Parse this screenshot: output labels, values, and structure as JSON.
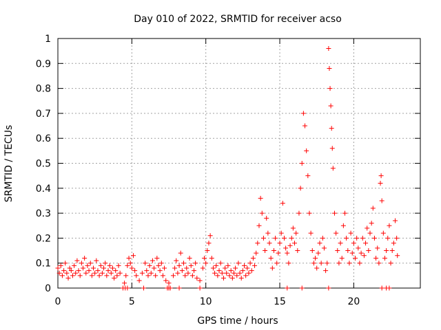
{
  "chart_data": {
    "type": "scatter",
    "title": "Day 010 of 2022, SRMTID for receiver acso",
    "xlabel": "GPS time / hours",
    "ylabel": "SRMTID / TECUs",
    "xlim": [
      0,
      24.5
    ],
    "ylim": [
      0,
      1
    ],
    "xticks": [
      "0",
      "5",
      "10",
      "15",
      "20"
    ],
    "yticks": [
      "0",
      "0.1",
      "0.2",
      "0.3",
      "0.4",
      "0.5",
      "0.6",
      "0.7",
      "0.8",
      "0.9",
      "1"
    ],
    "grid": true,
    "marker": "+",
    "color": "#ff0000",
    "series": [
      {
        "name": "SRMTID",
        "points": [
          [
            0.0,
            0.08
          ],
          [
            0.1,
            0.06
          ],
          [
            0.2,
            0.09
          ],
          [
            0.3,
            0.05
          ],
          [
            0.4,
            0.07
          ],
          [
            0.5,
            0.1
          ],
          [
            0.6,
            0.06
          ],
          [
            0.7,
            0.04
          ],
          [
            0.8,
            0.08
          ],
          [
            0.9,
            0.07
          ],
          [
            1.0,
            0.05
          ],
          [
            1.1,
            0.09
          ],
          [
            1.2,
            0.06
          ],
          [
            1.3,
            0.11
          ],
          [
            1.4,
            0.07
          ],
          [
            1.5,
            0.05
          ],
          [
            1.6,
            0.1
          ],
          [
            1.7,
            0.08
          ],
          [
            1.8,
            0.12
          ],
          [
            1.9,
            0.06
          ],
          [
            2.0,
            0.09
          ],
          [
            2.1,
            0.07
          ],
          [
            2.2,
            0.1
          ],
          [
            2.3,
            0.05
          ],
          [
            2.4,
            0.08
          ],
          [
            2.5,
            0.06
          ],
          [
            2.6,
            0.11
          ],
          [
            2.7,
            0.07
          ],
          [
            2.8,
            0.05
          ],
          [
            2.9,
            0.09
          ],
          [
            3.0,
            0.06
          ],
          [
            3.1,
            0.08
          ],
          [
            3.2,
            0.1
          ],
          [
            3.3,
            0.05
          ],
          [
            3.4,
            0.07
          ],
          [
            3.5,
            0.09
          ],
          [
            3.6,
            0.06
          ],
          [
            3.7,
            0.08
          ],
          [
            3.8,
            0.04
          ],
          [
            3.9,
            0.07
          ],
          [
            4.0,
            0.05
          ],
          [
            4.1,
            0.09
          ],
          [
            4.2,
            0.06
          ],
          [
            4.5,
            0.02
          ],
          [
            4.6,
            0.05
          ],
          [
            4.7,
            0.09
          ],
          [
            4.8,
            0.12
          ],
          [
            4.9,
            0.1
          ],
          [
            5.0,
            0.08
          ],
          [
            5.1,
            0.13
          ],
          [
            5.2,
            0.07
          ],
          [
            5.3,
            0.05
          ],
          [
            5.5,
            0.03
          ],
          [
            5.7,
            0.06
          ],
          [
            5.9,
            0.1
          ],
          [
            6.0,
            0.07
          ],
          [
            6.1,
            0.05
          ],
          [
            6.2,
            0.09
          ],
          [
            6.3,
            0.06
          ],
          [
            6.4,
            0.11
          ],
          [
            6.5,
            0.08
          ],
          [
            6.6,
            0.05
          ],
          [
            6.7,
            0.12
          ],
          [
            6.8,
            0.09
          ],
          [
            6.9,
            0.07
          ],
          [
            7.0,
            0.1
          ],
          [
            7.1,
            0.05
          ],
          [
            7.2,
            0.08
          ],
          [
            7.3,
            0.03
          ],
          [
            7.5,
            0.02
          ],
          [
            7.8,
            0.05
          ],
          [
            7.9,
            0.08
          ],
          [
            8.0,
            0.11
          ],
          [
            8.1,
            0.06
          ],
          [
            8.2,
            0.09
          ],
          [
            8.3,
            0.14
          ],
          [
            8.4,
            0.07
          ],
          [
            8.5,
            0.1
          ],
          [
            8.6,
            0.05
          ],
          [
            8.7,
            0.08
          ],
          [
            8.8,
            0.06
          ],
          [
            8.9,
            0.12
          ],
          [
            9.0,
            0.09
          ],
          [
            9.1,
            0.05
          ],
          [
            9.2,
            0.07
          ],
          [
            9.3,
            0.1
          ],
          [
            9.4,
            0.04
          ],
          [
            9.6,
            0.03
          ],
          [
            9.8,
            0.08
          ],
          [
            9.9,
            0.12
          ],
          [
            10.0,
            0.1
          ],
          [
            10.1,
            0.15
          ],
          [
            10.2,
            0.18
          ],
          [
            10.3,
            0.21
          ],
          [
            10.4,
            0.12
          ],
          [
            10.5,
            0.08
          ],
          [
            10.6,
            0.06
          ],
          [
            10.7,
            0.09
          ],
          [
            10.8,
            0.05
          ],
          [
            10.9,
            0.07
          ],
          [
            11.0,
            0.1
          ],
          [
            11.1,
            0.06
          ],
          [
            11.2,
            0.04
          ],
          [
            11.3,
            0.08
          ],
          [
            11.4,
            0.06
          ],
          [
            11.5,
            0.09
          ],
          [
            11.6,
            0.05
          ],
          [
            11.7,
            0.07
          ],
          [
            11.8,
            0.04
          ],
          [
            11.9,
            0.06
          ],
          [
            12.0,
            0.08
          ],
          [
            12.1,
            0.05
          ],
          [
            12.2,
            0.1
          ],
          [
            12.3,
            0.06
          ],
          [
            12.4,
            0.04
          ],
          [
            12.5,
            0.07
          ],
          [
            12.6,
            0.09
          ],
          [
            12.7,
            0.05
          ],
          [
            12.8,
            0.08
          ],
          [
            12.9,
            0.06
          ],
          [
            13.0,
            0.1
          ],
          [
            13.1,
            0.07
          ],
          [
            13.2,
            0.12
          ],
          [
            13.3,
            0.09
          ],
          [
            13.4,
            0.14
          ],
          [
            13.5,
            0.18
          ],
          [
            13.6,
            0.25
          ],
          [
            13.7,
            0.36
          ],
          [
            13.8,
            0.3
          ],
          [
            13.9,
            0.2
          ],
          [
            14.0,
            0.15
          ],
          [
            14.1,
            0.28
          ],
          [
            14.2,
            0.22
          ],
          [
            14.3,
            0.18
          ],
          [
            14.4,
            0.12
          ],
          [
            14.5,
            0.08
          ],
          [
            14.6,
            0.15
          ],
          [
            14.7,
            0.2
          ],
          [
            14.8,
            0.1
          ],
          [
            14.9,
            0.14
          ],
          [
            15.0,
            0.18
          ],
          [
            15.1,
            0.22
          ],
          [
            15.2,
            0.34
          ],
          [
            15.3,
            0.2
          ],
          [
            15.4,
            0.16
          ],
          [
            15.5,
            0.14
          ],
          [
            15.6,
            0.1
          ],
          [
            15.7,
            0.17
          ],
          [
            15.8,
            0.2
          ],
          [
            15.9,
            0.24
          ],
          [
            16.0,
            0.18
          ],
          [
            16.1,
            0.22
          ],
          [
            16.2,
            0.15
          ],
          [
            16.3,
            0.3
          ],
          [
            16.4,
            0.4
          ],
          [
            16.5,
            0.5
          ],
          [
            16.6,
            0.7
          ],
          [
            16.7,
            0.65
          ],
          [
            16.8,
            0.55
          ],
          [
            16.9,
            0.45
          ],
          [
            17.0,
            0.3
          ],
          [
            17.1,
            0.22
          ],
          [
            17.2,
            0.15
          ],
          [
            17.3,
            0.1
          ],
          [
            17.4,
            0.12
          ],
          [
            17.5,
            0.08
          ],
          [
            17.6,
            0.14
          ],
          [
            17.7,
            0.18
          ],
          [
            17.8,
            0.1
          ],
          [
            17.9,
            0.2
          ],
          [
            18.0,
            0.16
          ],
          [
            18.1,
            0.07
          ],
          [
            18.2,
            0.1
          ],
          [
            18.3,
            0.96
          ],
          [
            18.35,
            0.88
          ],
          [
            18.4,
            0.8
          ],
          [
            18.45,
            0.73
          ],
          [
            18.5,
            0.64
          ],
          [
            18.55,
            0.56
          ],
          [
            18.6,
            0.48
          ],
          [
            18.7,
            0.3
          ],
          [
            18.8,
            0.22
          ],
          [
            18.9,
            0.15
          ],
          [
            19.0,
            0.1
          ],
          [
            19.1,
            0.18
          ],
          [
            19.2,
            0.12
          ],
          [
            19.3,
            0.25
          ],
          [
            19.4,
            0.3
          ],
          [
            19.5,
            0.2
          ],
          [
            19.6,
            0.15
          ],
          [
            19.7,
            0.1
          ],
          [
            19.8,
            0.22
          ],
          [
            19.9,
            0.14
          ],
          [
            20.0,
            0.18
          ],
          [
            20.1,
            0.12
          ],
          [
            20.2,
            0.2
          ],
          [
            20.3,
            0.16
          ],
          [
            20.4,
            0.1
          ],
          [
            20.5,
            0.14
          ],
          [
            20.6,
            0.2
          ],
          [
            20.7,
            0.13
          ],
          [
            20.8,
            0.18
          ],
          [
            20.9,
            0.24
          ],
          [
            21.0,
            0.15
          ],
          [
            21.1,
            0.22
          ],
          [
            21.2,
            0.26
          ],
          [
            21.3,
            0.32
          ],
          [
            21.4,
            0.2
          ],
          [
            21.5,
            0.12
          ],
          [
            21.6,
            0.16
          ],
          [
            21.7,
            0.1
          ],
          [
            21.8,
            0.42
          ],
          [
            21.85,
            0.45
          ],
          [
            21.9,
            0.35
          ],
          [
            22.0,
            0.22
          ],
          [
            22.1,
            0.12
          ],
          [
            22.2,
            0.15
          ],
          [
            22.3,
            0.2
          ],
          [
            22.4,
            0.25
          ],
          [
            22.5,
            0.1
          ],
          [
            22.6,
            0.15
          ],
          [
            22.7,
            0.18
          ],
          [
            22.8,
            0.27
          ],
          [
            22.9,
            0.2
          ],
          [
            22.95,
            0.13
          ],
          [
            4.4,
            0.0
          ],
          [
            4.55,
            0.0
          ],
          [
            4.7,
            0.0
          ],
          [
            5.8,
            0.0
          ],
          [
            7.4,
            0.0
          ],
          [
            7.5,
            0.0
          ],
          [
            7.6,
            0.0
          ],
          [
            8.2,
            0.0
          ],
          [
            9.6,
            0.0
          ],
          [
            15.5,
            0.0
          ],
          [
            16.5,
            0.0
          ],
          [
            18.3,
            0.0
          ],
          [
            21.9,
            0.0
          ],
          [
            22.2,
            0.0
          ],
          [
            22.4,
            0.0
          ]
        ]
      }
    ]
  }
}
